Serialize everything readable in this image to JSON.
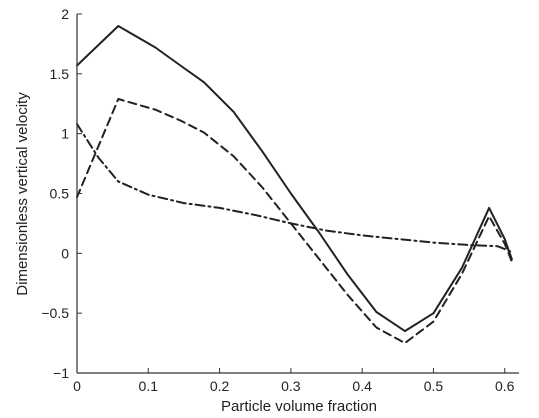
{
  "chart_data": {
    "type": "line",
    "xlabel": "Particle volume fraction",
    "ylabel": "Dimensionless vertical velocity",
    "xlim": [
      0,
      0.62
    ],
    "ylim": [
      -1,
      2
    ],
    "xticks": [
      "0",
      "0.1",
      "0.2",
      "0.3",
      "0.4",
      "0.5",
      "0.6"
    ],
    "yticks": [
      "-1",
      "-0.5",
      "0",
      "0.5",
      "1",
      "1.5",
      "2"
    ],
    "grid": false,
    "legend": "none",
    "series": [
      {
        "style": "solid",
        "color": "#222222",
        "x": [
          0.0,
          0.058,
          0.11,
          0.145,
          0.178,
          0.22,
          0.26,
          0.3,
          0.34,
          0.38,
          0.42,
          0.46,
          0.5,
          0.54,
          0.578,
          0.6,
          0.61
        ],
        "y": [
          1.57,
          1.9,
          1.72,
          1.57,
          1.43,
          1.18,
          0.85,
          0.5,
          0.17,
          -0.18,
          -0.49,
          -0.65,
          -0.5,
          -0.12,
          0.38,
          0.12,
          -0.05
        ]
      },
      {
        "style": "dashed",
        "color": "#222222",
        "x": [
          0.0,
          0.058,
          0.11,
          0.145,
          0.178,
          0.22,
          0.26,
          0.3,
          0.34,
          0.38,
          0.42,
          0.46,
          0.5,
          0.54,
          0.578,
          0.6,
          0.61
        ],
        "y": [
          0.47,
          1.29,
          1.2,
          1.11,
          1.01,
          0.81,
          0.55,
          0.25,
          -0.05,
          -0.35,
          -0.62,
          -0.75,
          -0.57,
          -0.17,
          0.31,
          0.08,
          -0.07
        ]
      },
      {
        "style": "dashdot",
        "color": "#222222",
        "x": [
          0.0,
          0.03,
          0.058,
          0.1,
          0.15,
          0.2,
          0.25,
          0.3,
          0.35,
          0.4,
          0.45,
          0.5,
          0.55,
          0.59,
          0.61
        ],
        "y": [
          1.08,
          0.8,
          0.6,
          0.49,
          0.42,
          0.38,
          0.32,
          0.25,
          0.19,
          0.15,
          0.12,
          0.09,
          0.07,
          0.06,
          0.01
        ]
      }
    ]
  }
}
